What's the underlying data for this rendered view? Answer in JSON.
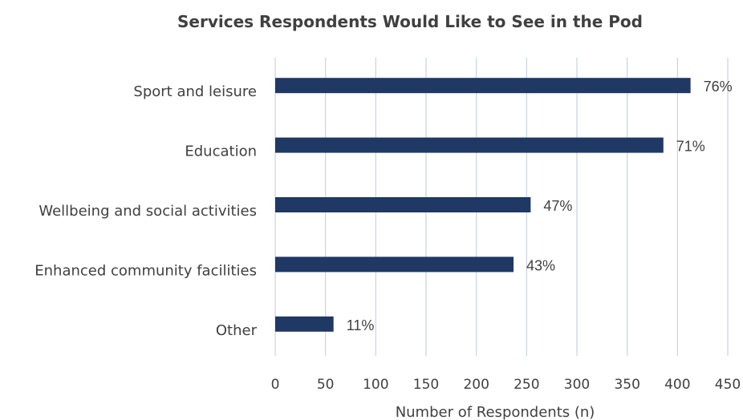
{
  "chart_data": {
    "type": "bar",
    "orientation": "horizontal",
    "title": "Services Respondents Would Like to See in the Pod",
    "xlabel": "Number of Respondents (n)",
    "ylabel": "",
    "categories": [
      "Sport and leisure",
      "Education",
      "Wellbeing and social activities",
      "Enhanced community facilities",
      "Other"
    ],
    "values": [
      413,
      386,
      254,
      237,
      58
    ],
    "data_labels": [
      "76%",
      "71%",
      "47%",
      "43%",
      "11%"
    ],
    "xlim": [
      0,
      450
    ],
    "xticks": [
      0,
      50,
      100,
      150,
      200,
      250,
      300,
      350,
      400,
      450
    ],
    "tick_labels": [
      "0",
      "50",
      "100",
      "150",
      "200",
      "250",
      "300",
      "350",
      "400",
      "450"
    ],
    "grid": true,
    "legend": "none",
    "bar_color": "#1f3864",
    "grid_color": "#c9d3e0"
  }
}
